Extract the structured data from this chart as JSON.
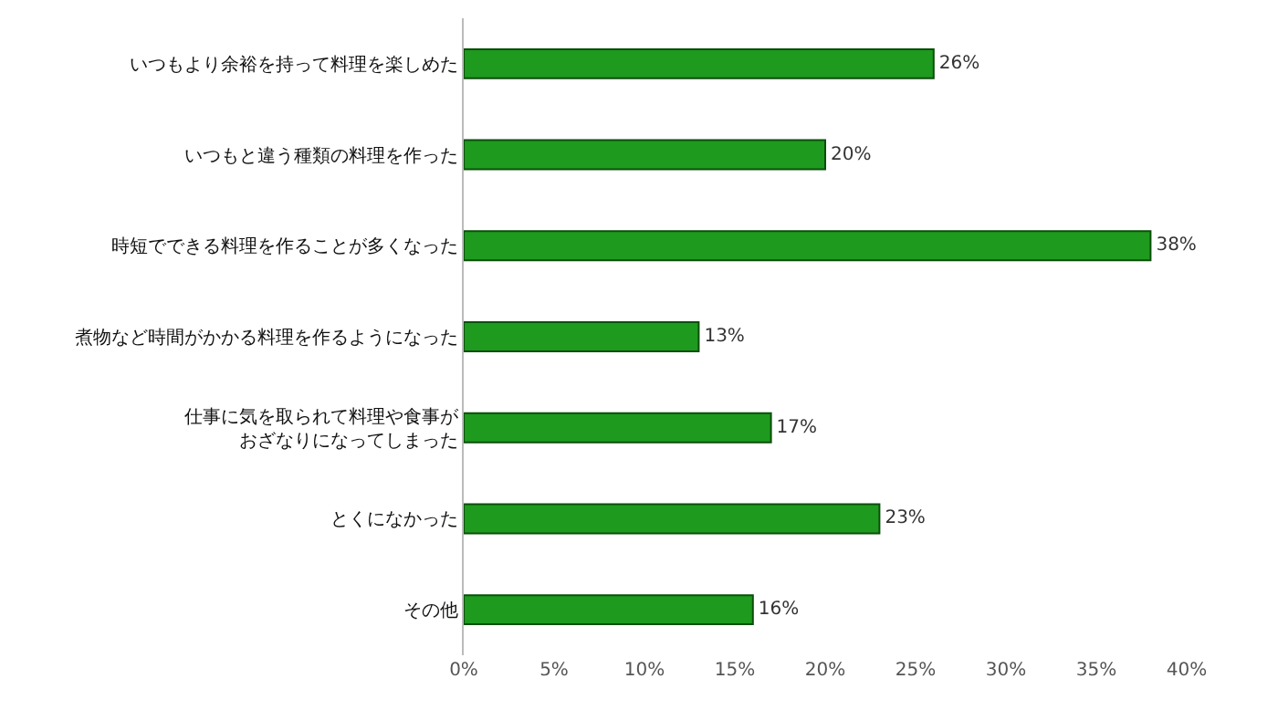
{
  "chart_data": {
    "type": "bar",
    "orientation": "horizontal",
    "categories": [
      "いつもより余裕を持って料理を楽しめた",
      "いつもと違う種類の料理を作った",
      "時短でできる料理を作ることが多くなった",
      "煮物など時間がかかる料理を作るようになった",
      "仕事に気を取られて料理や食事がおざなりになってしまった",
      "とくになかった",
      "その他"
    ],
    "values": [
      26,
      20,
      38,
      13,
      17,
      23,
      16
    ],
    "value_labels": [
      "26%",
      "20%",
      "38%",
      "13%",
      "17%",
      "23%",
      "16%"
    ],
    "color": "#1e9a1e",
    "xlim": [
      0,
      40
    ],
    "xticks": [
      {
        "value": 0,
        "label": "0%"
      },
      {
        "value": 5,
        "label": "5%"
      },
      {
        "value": 10,
        "label": "10%"
      },
      {
        "value": 15,
        "label": "15%"
      },
      {
        "value": 20,
        "label": "20%"
      },
      {
        "value": 25,
        "label": "25%"
      },
      {
        "value": 30,
        "label": "30%"
      },
      {
        "value": 35,
        "label": "35%"
      },
      {
        "value": 40,
        "label": "40%"
      }
    ]
  }
}
